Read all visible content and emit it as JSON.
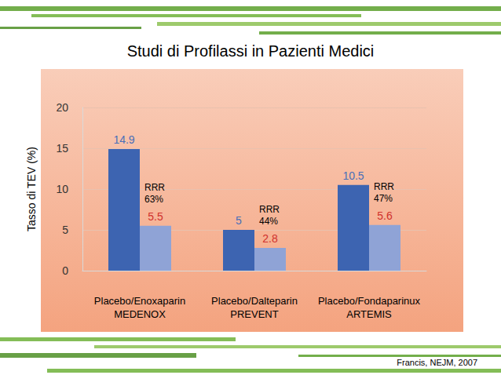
{
  "chart_data": {
    "type": "bar",
    "title": "Studi di Profilassi in Pazienti Medici",
    "y_label": "Tasso di TEV (%)",
    "categories": [
      "Placebo/Enoxaparin MEDENOX",
      "Placebo/Dalteparin PREVENT",
      "Placebo/Fondaparinux ARTEMIS"
    ],
    "series": [
      {
        "color": "#3d64b1",
        "values": [
          14.9,
          5,
          10.5
        ]
      },
      {
        "color": "#8fa3d6",
        "values": [
          5.5,
          2.8,
          5.6
        ]
      }
    ],
    "annotations": [
      "RRR 63%",
      "RRR 44%",
      "RRR 47%"
    ],
    "source": "Francis, NEJM, 2007",
    "ylim": [
      0,
      20
    ],
    "yticks": [
      0,
      5,
      10,
      15,
      20
    ],
    "grid": true,
    "data_labels": true
  }
}
